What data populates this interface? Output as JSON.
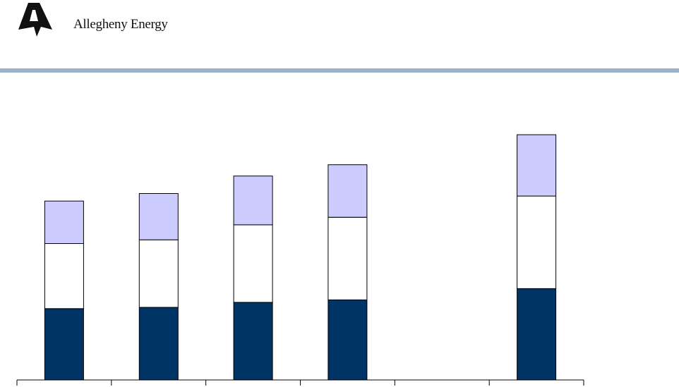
{
  "header": {
    "company_name": "Allegheny Energy",
    "logo_icon": "allegheny-a-logo-icon",
    "rule_color": "#9AB3CB"
  },
  "chart_data": {
    "type": "bar",
    "stacked": true,
    "title": "",
    "xlabel": "",
    "ylabel": "",
    "categories": [
      "",
      "",
      "",
      "",
      "",
      ""
    ],
    "ylim": [
      0,
      100
    ],
    "series": [
      {
        "values": [
          28.5,
          29,
          31,
          32,
          null,
          36.5
        ],
        "color": "#003366"
      },
      {
        "values": [
          26,
          27,
          31,
          33,
          null,
          37
        ],
        "color": "#FFFFFF"
      },
      {
        "values": [
          17,
          18.5,
          19.5,
          21,
          null,
          24.5
        ],
        "color": "#CCCCFF"
      }
    ],
    "grid": false,
    "legend": "none"
  }
}
